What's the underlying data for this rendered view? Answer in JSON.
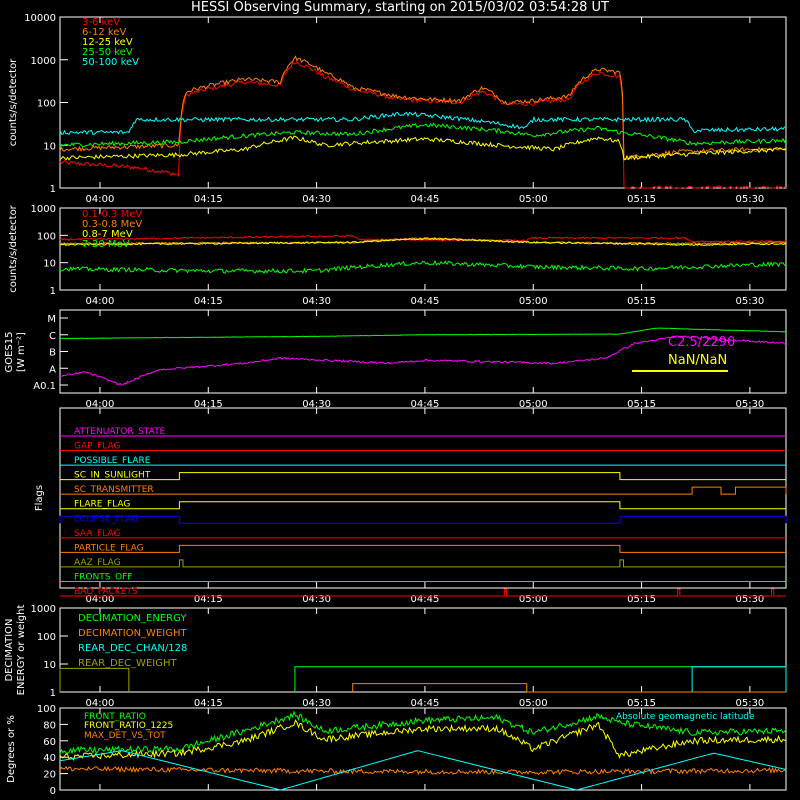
{
  "title": "HESSI Observing Summary, starting on 2015/03/02 03:54:28 UT",
  "time_ticks": [
    "04:00",
    "04:15",
    "04:30",
    "04:45",
    "05:00",
    "05:15",
    "05:30"
  ],
  "colors": {
    "red": "#ff0000",
    "orange": "#ff7f00",
    "yellow": "#ffff00",
    "green": "#00ff00",
    "cyan": "#00ffff",
    "magenta": "#ff00ff",
    "blue": "#0000ff",
    "olive": "#a0a000",
    "axis": "#ffffff",
    "background": "#000000"
  },
  "chart_data": [
    {
      "type": "line",
      "ylabel": "counts/s/detector",
      "yscale": "log",
      "ylim": [
        1,
        10000
      ],
      "yticks": [
        "1",
        "10",
        "100",
        "1000",
        "10000"
      ],
      "xlim": [
        "03:54:28",
        "05:35:00"
      ],
      "series": [
        {
          "name": "3-6 keV",
          "color": "red",
          "t": [
            "03:54",
            "04:05",
            "04:11",
            "04:12",
            "04:20",
            "04:25",
            "04:27",
            "04:31",
            "04:35",
            "04:41",
            "04:45",
            "04:50",
            "04:53",
            "04:56",
            "05:00",
            "05:05",
            "05:09",
            "05:12",
            "05:12.5",
            "05:20",
            "05:30",
            "05:35"
          ],
          "values": [
            4,
            3,
            2,
            150,
            300,
            250,
            900,
            400,
            200,
            120,
            110,
            100,
            180,
            90,
            95,
            120,
            500,
            400,
            1,
            1,
            1,
            1
          ]
        },
        {
          "name": "6-12 keV",
          "color": "orange",
          "t": [
            "03:54",
            "04:11",
            "04:12",
            "04:20",
            "04:25",
            "04:27",
            "04:31",
            "04:35",
            "04:41",
            "04:45",
            "04:50",
            "04:53",
            "04:56",
            "05:00",
            "05:05",
            "05:09",
            "05:12",
            "05:12.5",
            "05:20",
            "05:30",
            "05:35"
          ],
          "values": [
            8,
            10,
            180,
            350,
            300,
            1100,
            500,
            220,
            140,
            120,
            110,
            220,
            100,
            110,
            140,
            600,
            500,
            5,
            7,
            8,
            8
          ]
        },
        {
          "name": "12-25 keV",
          "color": "yellow",
          "t": [
            "03:54",
            "04:11",
            "04:20",
            "04:27",
            "04:31",
            "04:45",
            "04:55",
            "05:03",
            "05:09",
            "05:12",
            "05:12.5",
            "05:35"
          ],
          "values": [
            5,
            6,
            8,
            15,
            10,
            14,
            10,
            8,
            15,
            12,
            5,
            8
          ]
        },
        {
          "name": "25-50 keV",
          "color": "green",
          "t": [
            "03:54",
            "04:11",
            "04:27",
            "04:35",
            "04:45",
            "04:55",
            "05:00",
            "05:09",
            "05:12",
            "05:22",
            "05:35"
          ],
          "values": [
            10,
            12,
            20,
            18,
            30,
            22,
            17,
            25,
            20,
            11,
            13
          ]
        },
        {
          "name": "50-100 keV",
          "color": "cyan",
          "t": [
            "03:54",
            "04:04",
            "04:05",
            "04:35",
            "04:42",
            "04:48",
            "04:59",
            "05:00",
            "05:21",
            "05:22",
            "05:35"
          ],
          "values": [
            20,
            20,
            40,
            40,
            55,
            45,
            25,
            40,
            40,
            22,
            24
          ]
        }
      ]
    },
    {
      "type": "line",
      "ylabel": "counts/s/detector",
      "yscale": "log",
      "ylim": [
        1,
        1000
      ],
      "yticks": [
        "1",
        "10",
        "100",
        "1000"
      ],
      "series": [
        {
          "name": "0.1-0.3 MeV",
          "color": "red",
          "t": [
            "03:54",
            "04:05",
            "04:35",
            "04:36",
            "04:59",
            "05:00",
            "05:21",
            "05:22",
            "05:35"
          ],
          "values": [
            70,
            75,
            95,
            70,
            65,
            80,
            80,
            60,
            60
          ]
        },
        {
          "name": "0.3-0.8 MeV",
          "color": "orange",
          "t": [
            "03:54",
            "04:35",
            "04:45",
            "05:00",
            "05:22",
            "05:35"
          ],
          "values": [
            50,
            55,
            80,
            55,
            50,
            55
          ]
        },
        {
          "name": "0.8-7 MeV",
          "color": "yellow",
          "t": [
            "03:54",
            "04:35",
            "04:45",
            "05:00",
            "05:22",
            "05:35"
          ],
          "values": [
            45,
            55,
            75,
            55,
            45,
            50
          ]
        },
        {
          "name": "7-20 MeV",
          "color": "green",
          "t": [
            "03:54",
            "04:15",
            "04:30",
            "04:45",
            "05:00",
            "05:15",
            "05:35"
          ],
          "values": [
            6,
            5,
            5,
            10,
            7,
            6,
            9
          ]
        }
      ]
    },
    {
      "type": "line",
      "ylabel": "GOES15 [W m⁻²]",
      "yscale": "log",
      "yticks": [
        "A0.1",
        "A",
        "B",
        "C",
        "M"
      ],
      "series": [
        {
          "color": "green",
          "t": [
            "03:54",
            "04:30",
            "04:45",
            "05:12",
            "05:17",
            "05:35"
          ],
          "values": [
            "C0.6",
            "C0.8",
            "C1.0",
            "C1.1",
            "C2.5",
            "C1.5"
          ]
        },
        {
          "color": "magenta",
          "t": [
            "03:54",
            "03:58",
            "04:03",
            "04:08",
            "04:20",
            "04:25",
            "04:40",
            "04:45",
            "05:03",
            "05:10",
            "05:14",
            "05:20",
            "05:35"
          ],
          "values": [
            "A0.3",
            "A0.6",
            "A0.1",
            "A0.8",
            "A2",
            "A4",
            "A2",
            "A3",
            "A2",
            "A4",
            "B3",
            "B8",
            "B3"
          ]
        }
      ],
      "annotations": [
        "C2.5/2290",
        "NaN/NaN"
      ]
    },
    {
      "type": "line",
      "ylabel": "Flags",
      "flags": [
        {
          "name": "ATTENUATOR_STATE",
          "color": "magenta",
          "on": []
        },
        {
          "name": "GAP_FLAG",
          "color": "red",
          "on": []
        },
        {
          "name": "POSSIBLE_FLARE",
          "color": "cyan",
          "on": []
        },
        {
          "name": "SC_IN_SUNLIGHT",
          "color": "yellow",
          "on": [
            [
              "04:11",
              "05:12"
            ]
          ]
        },
        {
          "name": "SC_TRANSMITTER",
          "color": "orange",
          "on": [
            [
              "05:22",
              "05:26"
            ],
            [
              "05:28",
              "05:35"
            ]
          ]
        },
        {
          "name": "FLARE_FLAG",
          "color": "yellow",
          "on": [
            [
              "04:11",
              "05:12"
            ]
          ]
        },
        {
          "name": "ECLIPSE_FLAG",
          "color": "blue",
          "on": [
            [
              "03:54",
              "04:11"
            ],
            [
              "05:12",
              "05:35"
            ]
          ]
        },
        {
          "name": "SAA_FLAG",
          "color": "red",
          "on": []
        },
        {
          "name": "PARTICLE_FLAG",
          "color": "orange",
          "on": [
            [
              "04:11",
              "05:12"
            ]
          ]
        },
        {
          "name": "AAZ_FLAG",
          "color": "olive",
          "on": [
            [
              "04:11",
              "04:11.5"
            ],
            [
              "05:12",
              "05:12.5"
            ]
          ]
        },
        {
          "name": "FRONTS_OFF",
          "color": "green",
          "on": []
        },
        {
          "name": "BAD_PACKETS",
          "color": "red",
          "on": [
            [
              "04:56",
              "04:56.3"
            ],
            [
              "05:20",
              "05:20.3"
            ],
            [
              "05:33",
              "05:33.3"
            ]
          ]
        }
      ]
    },
    {
      "type": "line",
      "ylabel": "DECIMATION ENERGY or weight",
      "yscale": "log",
      "ylim": [
        1,
        1000
      ],
      "yticks": [
        "1",
        "10",
        "100",
        "1000"
      ],
      "series": [
        {
          "name": "DECIMATION_ENERGY",
          "color": "green",
          "t": [
            "04:27",
            "05:35"
          ],
          "values": [
            8,
            8
          ]
        },
        {
          "name": "DECIMATION_WEIGHT",
          "color": "orange",
          "t": [
            "04:35",
            "04:59",
            "04:59.1",
            "05:35"
          ],
          "values": [
            2,
            2,
            1,
            1
          ]
        },
        {
          "name": "REAR_DEC_CHAN/128",
          "color": "cyan",
          "t": [
            "05:22",
            "05:35"
          ],
          "values": [
            8,
            8
          ]
        },
        {
          "name": "REAR_DEC_WEIGHT",
          "color": "olive",
          "t": [
            "03:54",
            "04:04"
          ],
          "values": [
            7,
            7
          ]
        }
      ]
    },
    {
      "type": "line",
      "ylabel": "Degrees or %",
      "ylim": [
        0,
        100
      ],
      "yticks": [
        "0",
        "20",
        "40",
        "60",
        "80",
        "100"
      ],
      "series": [
        {
          "name": "FRONT_RATIO",
          "color": "green",
          "t": [
            "03:54",
            "04:11",
            "04:20",
            "04:27",
            "04:31",
            "04:45",
            "04:55",
            "05:00",
            "05:09",
            "05:12",
            "05:22",
            "05:35"
          ],
          "values": [
            48,
            50,
            72,
            92,
            72,
            85,
            88,
            70,
            90,
            82,
            70,
            72
          ]
        },
        {
          "name": "FRONT_RATIO_1225",
          "color": "yellow",
          "t": [
            "03:54",
            "04:11",
            "04:20",
            "04:27",
            "04:31",
            "04:45",
            "04:55",
            "05:00",
            "05:09",
            "05:12",
            "05:22",
            "05:35"
          ],
          "values": [
            40,
            45,
            60,
            82,
            62,
            75,
            75,
            50,
            80,
            42,
            60,
            62
          ]
        },
        {
          "name": "MAX_DET_VS_TOT",
          "color": "orange",
          "t": [
            "03:54",
            "04:30",
            "05:00",
            "05:35"
          ],
          "values": [
            26,
            23,
            22,
            24
          ]
        },
        {
          "name": "Absolute geomagnetic latitude",
          "color": "cyan",
          "t": [
            "03:54",
            "04:03",
            "04:25",
            "04:44",
            "05:06",
            "05:25",
            "05:35"
          ],
          "values": [
            35,
            48,
            0,
            48,
            0,
            45,
            25
          ]
        }
      ]
    }
  ]
}
